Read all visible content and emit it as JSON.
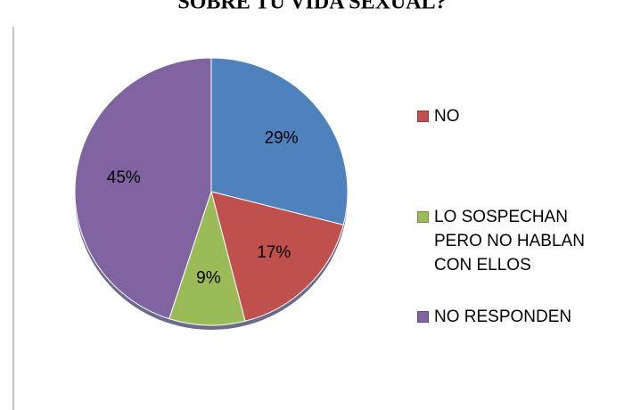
{
  "chart_data": {
    "type": "pie",
    "title": "SOBRE TU VIDA SEXUAL?",
    "categories": [
      null,
      "NO",
      "LO SOSPECHAN PERO NO HABLAN CON ELLOS",
      "NO RESPONDEN"
    ],
    "values": [
      29,
      17,
      9,
      45
    ],
    "value_labels": [
      "29%",
      "17%",
      "9%",
      "45%"
    ],
    "colors": [
      "#4f81bd",
      "#c0504d",
      "#9bbb59",
      "#8064a2"
    ],
    "legend": "right"
  }
}
